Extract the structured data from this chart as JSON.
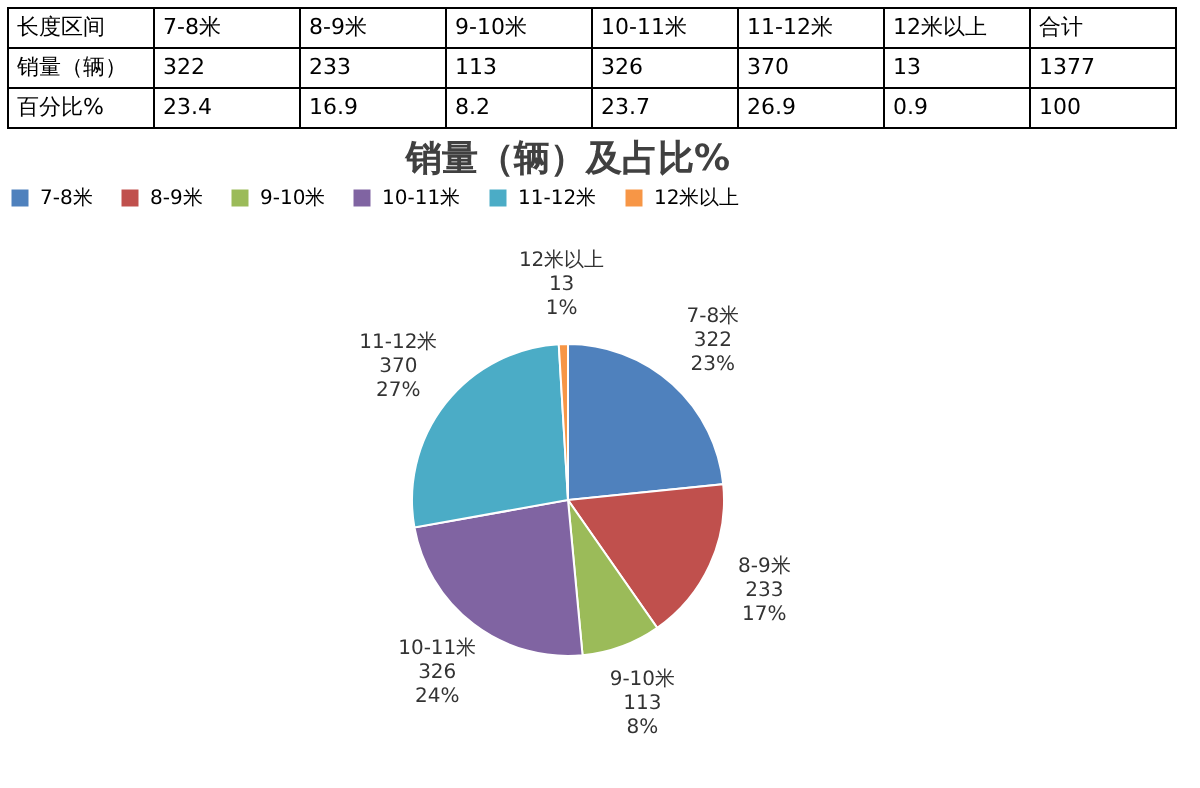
{
  "chart_data": [
    {
      "type": "other",
      "categories": [
        "长度区间",
        "7-8米",
        "8-9米",
        "9-10米",
        "10-11米",
        "11-12米",
        "12米以上",
        "合计"
      ],
      "y_categories": [
        "销量（辆）",
        "百分比%"
      ],
      "annotations": [
        "322",
        "233",
        "113",
        "326",
        "370",
        "13",
        "1377",
        "23.4",
        "16.9",
        "8.2",
        "23.7",
        "26.9",
        "0.9",
        "100"
      ]
    },
    {
      "type": "pie",
      "title": "销量（辆）及占比%",
      "categories": [
        "7-8米",
        "8-9米",
        "9-10米",
        "10-11米",
        "11-12米",
        "12米以上"
      ],
      "values": [
        322,
        233,
        113,
        326,
        370,
        13
      ],
      "colors": [
        "#4f81bd",
        "#c0504d",
        "#9bbb59",
        "#8064a2",
        "#4bacc6",
        "#f79646"
      ],
      "value_labels": [
        "322",
        "233",
        "113",
        "326",
        "370",
        "13"
      ],
      "annotations": [
        {
          "text": "23%",
          "x": "7-8米"
        },
        {
          "text": "17%",
          "x": "8-9米"
        },
        {
          "text": "8%",
          "x": "9-10米"
        },
        {
          "text": "24%",
          "x": "10-11米"
        },
        {
          "text": "27%",
          "x": "11-12米"
        },
        {
          "text": "1%",
          "x": "12米以上"
        }
      ],
      "legend": "top"
    }
  ]
}
